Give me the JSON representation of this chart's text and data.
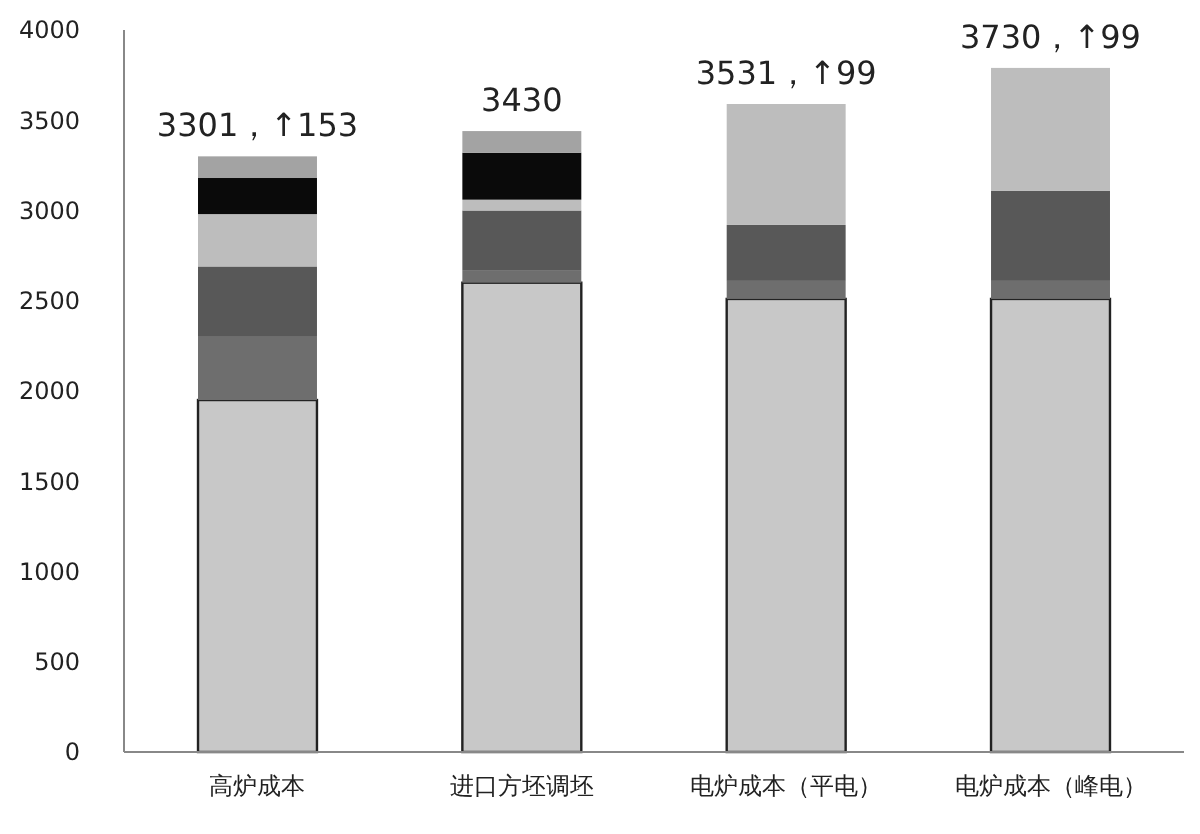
{
  "chart_data": {
    "type": "bar",
    "stacked": true,
    "categories": [
      "高炉成本",
      "进口方坯调坯",
      "电炉成本（平电）",
      "电炉成本（峰电）"
    ],
    "series": [
      {
        "color": "#c8c8c8",
        "values": [
          1950,
          2600,
          2510,
          2510
        ]
      },
      {
        "color": "#6e6e6e",
        "values": [
          350,
          70,
          100,
          100
        ]
      },
      {
        "color": "#585858",
        "values": [
          390,
          330,
          310,
          500
        ]
      },
      {
        "color": "#bdbdbd",
        "values": [
          290,
          60,
          670,
          680
        ]
      },
      {
        "color": "#0a0a0a",
        "values": [
          200,
          260,
          null,
          null
        ]
      },
      {
        "color": "#a3a3a3",
        "values": [
          120,
          120,
          null,
          null
        ]
      }
    ],
    "value_labels": [
      "3301，↑153",
      "3430",
      "3531，↑99",
      "3730，↑99"
    ],
    "ylim": [
      0,
      4000
    ],
    "yticks": [
      0,
      500,
      1000,
      1500,
      2000,
      2500,
      3000,
      3500,
      4000
    ],
    "grid": false
  }
}
